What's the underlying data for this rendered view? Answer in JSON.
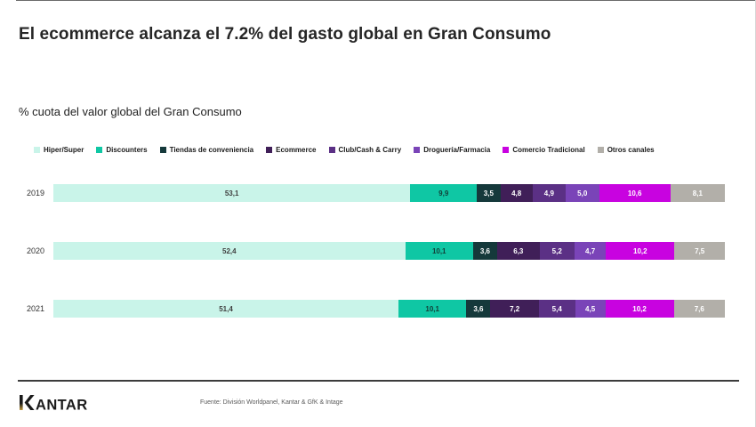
{
  "page": {
    "title": "El ecommerce alcanza el 7.2% del gasto global en Gran Consumo",
    "subtitle": "% cuota del valor global del Gran Consumo"
  },
  "footer": {
    "logo_text": "KANTAR",
    "source": "Fuente: División Worldpanel, Kantar & GfK & Intage"
  },
  "colors": {
    "title_text": "#262626",
    "divider": "#3c3c3c",
    "logo_gold": "#c29a3c",
    "logo_black": "#1a1a1a"
  },
  "chart_data": {
    "type": "bar",
    "variant": "horizontal-stacked",
    "title": "% cuota del valor global del Gran Consumo",
    "categories": [
      "2019",
      "2020",
      "2021"
    ],
    "series": [
      {
        "name": "Hiper/Super",
        "color": "#c9f4e9",
        "label_color": "#3f3f3f",
        "values": [
          53.1,
          52.4,
          51.4
        ]
      },
      {
        "name": "Discounters",
        "color": "#0fc7a4",
        "label_color": "#123f38",
        "values": [
          9.9,
          10.1,
          10.1
        ]
      },
      {
        "name": "Tiendas de conveniencia",
        "color": "#15393b",
        "label_color": "#ffffff",
        "values": [
          3.5,
          3.6,
          3.6
        ]
      },
      {
        "name": "Ecommerce",
        "color": "#401f58",
        "label_color": "#ffffff",
        "values": [
          4.8,
          6.3,
          7.2
        ]
      },
      {
        "name": "Club/Cash & Carry",
        "color": "#5b3085",
        "label_color": "#ffffff",
        "values": [
          4.9,
          5.2,
          5.4
        ]
      },
      {
        "name": "Droguería/Farmacia",
        "color": "#7a44b8",
        "label_color": "#ffffff",
        "values": [
          5.0,
          4.7,
          4.5
        ]
      },
      {
        "name": "Comercio Tradicional",
        "color": "#c803e0",
        "label_color": "#ffffff",
        "values": [
          10.6,
          10.2,
          10.2
        ]
      },
      {
        "name": "Otros canales",
        "color": "#b2afa9",
        "label_color": "#ffffff",
        "values": [
          8.1,
          7.5,
          7.6
        ]
      }
    ],
    "value_format": "comma-decimal-1",
    "legend_position": "top",
    "grid": false,
    "xlim": [
      0,
      100
    ]
  }
}
